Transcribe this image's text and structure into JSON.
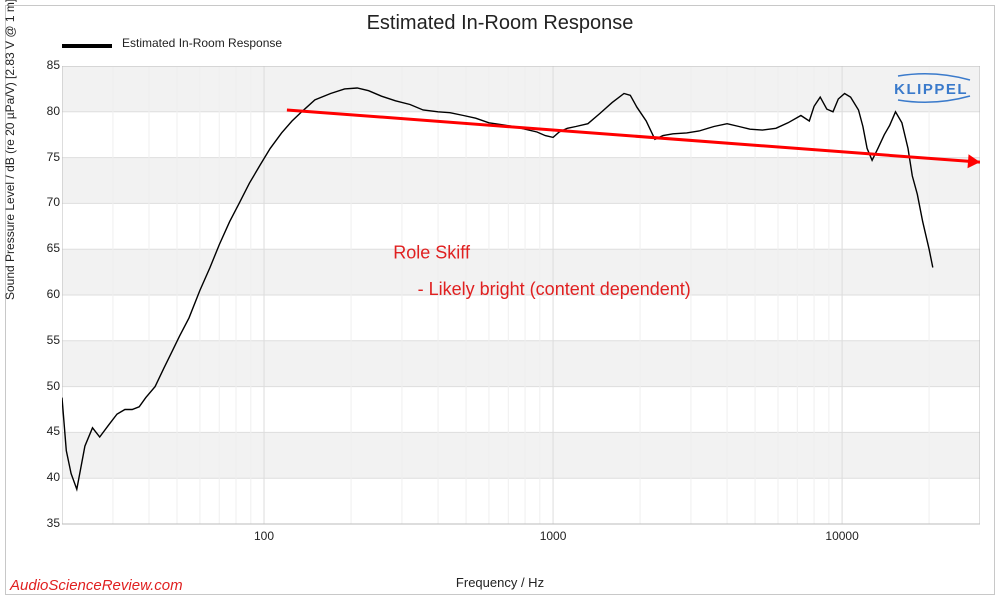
{
  "title": "Estimated In-Room Response",
  "legend": {
    "label": "Estimated In-Room Response"
  },
  "axes": {
    "xlabel": "Frequency / Hz",
    "ylabel": "Sound Pressure Level / dB (re 20 µPa/V) [2.83 V @ 1 m]",
    "xscale": "log",
    "xlim": [
      20,
      30000
    ],
    "ylim": [
      35,
      85
    ],
    "yticks": [
      35,
      40,
      45,
      50,
      55,
      60,
      65,
      70,
      75,
      80,
      85
    ],
    "xticks": [
      100,
      1000,
      10000
    ],
    "xticklabels": [
      "100",
      "1000",
      "10000"
    ],
    "grid_y_color": "#dedede",
    "grid_band_color": "#f2f2f2",
    "background": "#ffffff",
    "tick_fontsize": 12,
    "label_fontsize": 13
  },
  "trend_line": {
    "color": "#ff0000",
    "width": 3,
    "start_freq": 120,
    "start_db": 80.2,
    "end_freq": 30000,
    "end_db": 74.5,
    "arrow": true
  },
  "annotations": {
    "line1": "Role Skiff",
    "line2": "- Likely bright (content dependent)",
    "color": "#e02020",
    "fontsize": 18,
    "pos1_freq": 280,
    "pos1_db": 64,
    "pos2_freq": 340,
    "pos2_db": 60
  },
  "watermark": {
    "text": "AudioScienceReview.com",
    "color": "#e02020"
  },
  "logo": {
    "text": "KLIPPEL",
    "color": "#3a7acb"
  },
  "series": {
    "name": "Estimated In-Room Response",
    "color": "#000000",
    "width": 1.4,
    "data": [
      [
        20.0,
        48.8
      ],
      [
        20.7,
        43.0
      ],
      [
        21.5,
        40.5
      ],
      [
        22.5,
        38.8
      ],
      [
        24.0,
        43.5
      ],
      [
        25.5,
        45.5
      ],
      [
        27.0,
        44.5
      ],
      [
        29.0,
        45.8
      ],
      [
        31.0,
        47.0
      ],
      [
        33.0,
        47.5
      ],
      [
        35.0,
        47.5
      ],
      [
        37.0,
        47.8
      ],
      [
        39.0,
        48.8
      ],
      [
        42.0,
        50.0
      ],
      [
        45.0,
        52.0
      ],
      [
        48.0,
        53.8
      ],
      [
        51.0,
        55.5
      ],
      [
        55.0,
        57.5
      ],
      [
        60.0,
        60.5
      ],
      [
        65.0,
        63.0
      ],
      [
        70.0,
        65.5
      ],
      [
        76.0,
        68.0
      ],
      [
        82.0,
        70.0
      ],
      [
        89.0,
        72.2
      ],
      [
        97.0,
        74.2
      ],
      [
        105,
        76.0
      ],
      [
        115,
        77.7
      ],
      [
        125,
        79.0
      ],
      [
        135,
        80.0
      ],
      [
        150,
        81.3
      ],
      [
        170,
        82.0
      ],
      [
        190,
        82.5
      ],
      [
        210,
        82.6
      ],
      [
        230,
        82.3
      ],
      [
        255,
        81.7
      ],
      [
        285,
        81.2
      ],
      [
        320,
        80.8
      ],
      [
        355,
        80.2
      ],
      [
        400,
        80.0
      ],
      [
        440,
        79.9
      ],
      [
        490,
        79.6
      ],
      [
        540,
        79.3
      ],
      [
        600,
        78.8
      ],
      [
        660,
        78.6
      ],
      [
        730,
        78.4
      ],
      [
        800,
        78.1
      ],
      [
        880,
        77.8
      ],
      [
        940,
        77.4
      ],
      [
        1000,
        77.2
      ],
      [
        1050,
        77.8
      ],
      [
        1120,
        78.2
      ],
      [
        1200,
        78.4
      ],
      [
        1320,
        78.7
      ],
      [
        1450,
        79.8
      ],
      [
        1600,
        81.0
      ],
      [
        1760,
        82.0
      ],
      [
        1850,
        81.8
      ],
      [
        1950,
        80.5
      ],
      [
        2100,
        79.0
      ],
      [
        2250,
        77.0
      ],
      [
        2400,
        77.4
      ],
      [
        2600,
        77.6
      ],
      [
        2900,
        77.7
      ],
      [
        3200,
        77.9
      ],
      [
        3600,
        78.4
      ],
      [
        4000,
        78.7
      ],
      [
        4400,
        78.4
      ],
      [
        4800,
        78.1
      ],
      [
        5300,
        78.0
      ],
      [
        5900,
        78.2
      ],
      [
        6500,
        78.8
      ],
      [
        7200,
        79.6
      ],
      [
        7700,
        79.0
      ],
      [
        8000,
        80.6
      ],
      [
        8400,
        81.6
      ],
      [
        8850,
        80.3
      ],
      [
        9300,
        80.0
      ],
      [
        9700,
        81.4
      ],
      [
        10200,
        82.0
      ],
      [
        10700,
        81.6
      ],
      [
        11400,
        80.2
      ],
      [
        11800,
        78.4
      ],
      [
        12200,
        76.0
      ],
      [
        12700,
        74.7
      ],
      [
        13300,
        76.0
      ],
      [
        14000,
        77.5
      ],
      [
        14600,
        78.5
      ],
      [
        15300,
        80.0
      ],
      [
        16100,
        78.8
      ],
      [
        16900,
        76.0
      ],
      [
        17500,
        73.0
      ],
      [
        18200,
        71.0
      ],
      [
        19000,
        68.0
      ],
      [
        20000,
        65.0
      ],
      [
        20600,
        63.0
      ]
    ]
  }
}
